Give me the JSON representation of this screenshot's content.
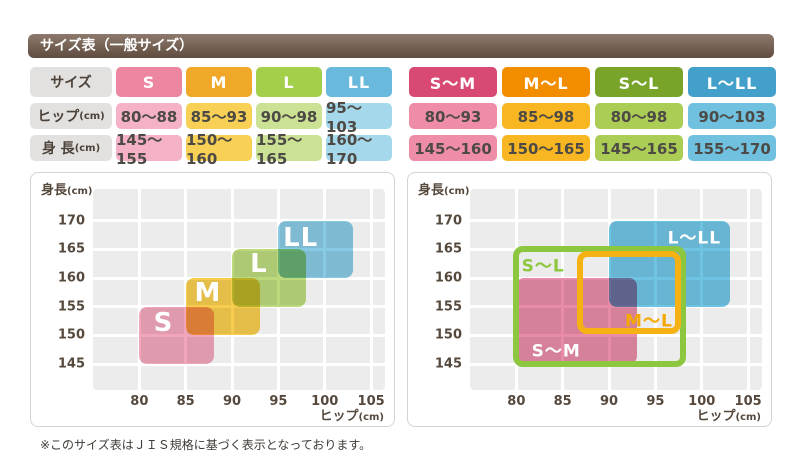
{
  "header": {
    "title": "サイズ表（一般サイズ）",
    "bg_top": "#8e7a6c",
    "bg_bottom": "#5f4c3f"
  },
  "tables": {
    "left": {
      "row_labels": [
        {
          "text": "サイズ",
          "unit": ""
        },
        {
          "text": "ヒップ",
          "unit": "(cm)"
        },
        {
          "text": "身 長",
          "unit": "(cm)"
        }
      ],
      "columns": [
        {
          "size": "S",
          "hip": "80～88",
          "height": "145～155",
          "header_bg": "#ec86a1",
          "cell_bg": "#f5b2c6"
        },
        {
          "size": "M",
          "hip": "85～93",
          "height": "150～160",
          "header_bg": "#f0a829",
          "cell_bg": "#f7d055"
        },
        {
          "size": "L",
          "hip": "90～98",
          "height": "155～165",
          "header_bg": "#a3cf4a",
          "cell_bg": "#cbe295"
        },
        {
          "size": "LL",
          "hip": "95～103",
          "height": "160～170",
          "header_bg": "#68b9dc",
          "cell_bg": "#a6d8ec"
        }
      ]
    },
    "right": {
      "columns": [
        {
          "size": "S～M",
          "hip": "80～93",
          "height": "145～160",
          "header_bg": "#d84a73",
          "cell_bg": "#ef8da9"
        },
        {
          "size": "M～L",
          "hip": "85～98",
          "height": "150～165",
          "header_bg": "#f28d00",
          "cell_bg": "#f8b722"
        },
        {
          "size": "S～L",
          "hip": "80～98",
          "height": "145～165",
          "header_bg": "#78a42a",
          "cell_bg": "#accd55"
        },
        {
          "size": "L～LL",
          "hip": "90～103",
          "height": "155～170",
          "header_bg": "#42a0ca",
          "cell_bg": "#70c1df"
        }
      ]
    }
  },
  "chart_data": [
    {
      "type": "area",
      "subtype": "size-regions",
      "title": "一般サイズ",
      "xlabel": "ヒップ(cm)",
      "ylabel": "身長(cm)",
      "xlim": [
        75,
        106.5
      ],
      "ylim": [
        140.5,
        175.5
      ],
      "xticks": [
        80,
        85,
        90,
        95,
        100,
        105
      ],
      "yticks": [
        145,
        150,
        155,
        160,
        165,
        170
      ],
      "grid": true,
      "grid_color": "#ffffff",
      "plot_bg": "#ececec",
      "regions": [
        {
          "label": "S",
          "hip": [
            80,
            88
          ],
          "height": [
            145,
            155
          ],
          "style": "fill",
          "color": "#f2a6bc",
          "label_color": "#ffffff",
          "label_pos": [
            82.6,
            152.2
          ],
          "label_size": 26
        },
        {
          "label": "M",
          "hip": [
            85,
            93
          ],
          "height": [
            150,
            160
          ],
          "style": "fill",
          "color": "#f8cd4f",
          "label_color": "#ffffff",
          "label_pos": [
            87.4,
            157.4
          ],
          "label_size": 26
        },
        {
          "label": "L",
          "hip": [
            90,
            98
          ],
          "height": [
            155,
            165
          ],
          "style": "fill",
          "color": "#bcda7c",
          "label_color": "#ffffff",
          "label_pos": [
            92.9,
            162.5
          ],
          "label_size": 26
        },
        {
          "label": "LL",
          "hip": [
            95,
            103
          ],
          "height": [
            160,
            170
          ],
          "style": "fill",
          "color": "#88cae4",
          "label_color": "#ffffff",
          "label_pos": [
            97.4,
            166.9
          ],
          "label_size": 26
        }
      ]
    },
    {
      "type": "area",
      "subtype": "size-regions",
      "title": "兼用サイズ",
      "xlabel": "ヒップ(cm)",
      "ylabel": "身長(cm)",
      "xlim": [
        75,
        106.5
      ],
      "ylim": [
        140.5,
        175.5
      ],
      "xticks": [
        80,
        85,
        90,
        95,
        100,
        105
      ],
      "yticks": [
        145,
        150,
        155,
        160,
        165,
        170
      ],
      "grid": true,
      "grid_color": "#ffffff",
      "plot_bg": "#ececec",
      "regions": [
        {
          "label": "S～M",
          "hip": [
            80,
            93
          ],
          "height": [
            145,
            160
          ],
          "style": "fill",
          "color": "#e78ba6",
          "label_color": "#ffffff",
          "label_pos": [
            84.3,
            147.7
          ],
          "label_size": 17
        },
        {
          "label": "L～LL",
          "hip": [
            90,
            103
          ],
          "height": [
            155,
            170
          ],
          "style": "fill",
          "color": "#6fc4e4",
          "label_color": "#ffffff",
          "label_pos": [
            99.2,
            167.4
          ],
          "label_size": 17
        },
        {
          "label": "S～L",
          "hip": [
            80,
            98
          ],
          "height": [
            145,
            165
          ],
          "style": "outline",
          "color": "#8dc63f",
          "label_color": "#8dc63f",
          "label_pos": [
            82.9,
            162.4
          ],
          "label_size": 17
        },
        {
          "label": "M～L",
          "hip": [
            85,
            98
          ],
          "height": [
            150,
            165
          ],
          "style": "outline",
          "color": "#f6b213",
          "label_color": "#f5a800",
          "label_pos": [
            94.3,
            152.9
          ],
          "label_size": 17,
          "draw_hip": [
            86.9,
            97.4
          ],
          "draw_height": [
            150.8,
            164.2
          ]
        }
      ]
    }
  ],
  "note": "※このサイズ表はＪＩＳ規格に基づく表示となっております。"
}
